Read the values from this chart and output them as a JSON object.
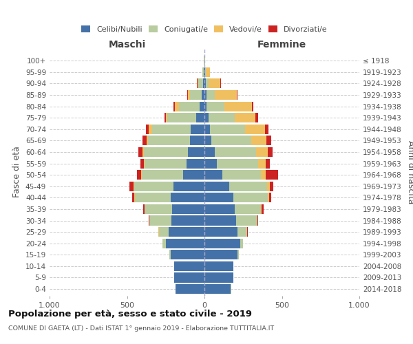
{
  "age_groups": [
    "0-4",
    "5-9",
    "10-14",
    "15-19",
    "20-24",
    "25-29",
    "30-34",
    "35-39",
    "40-44",
    "45-49",
    "50-54",
    "55-59",
    "60-64",
    "65-69",
    "70-74",
    "75-79",
    "80-84",
    "85-89",
    "90-94",
    "95-99",
    "100+"
  ],
  "birth_years": [
    "2014-2018",
    "2009-2013",
    "2004-2008",
    "1999-2003",
    "1994-1998",
    "1989-1993",
    "1984-1988",
    "1979-1983",
    "1974-1978",
    "1969-1973",
    "1964-1968",
    "1959-1963",
    "1954-1958",
    "1949-1953",
    "1944-1948",
    "1939-1943",
    "1934-1938",
    "1929-1933",
    "1924-1928",
    "1919-1923",
    "≤ 1918"
  ],
  "maschi": {
    "celibi": [
      185,
      195,
      195,
      220,
      250,
      230,
      215,
      210,
      220,
      200,
      140,
      115,
      105,
      95,
      90,
      55,
      30,
      20,
      10,
      5,
      2
    ],
    "coniugati": [
      2,
      2,
      2,
      5,
      20,
      65,
      140,
      175,
      230,
      255,
      265,
      270,
      285,
      270,
      250,
      185,
      135,
      75,
      30,
      8,
      2
    ],
    "vedovi": [
      0,
      0,
      0,
      0,
      2,
      2,
      2,
      2,
      2,
      3,
      5,
      8,
      10,
      10,
      20,
      10,
      25,
      12,
      5,
      2,
      0
    ],
    "divorziati": [
      0,
      0,
      0,
      0,
      0,
      2,
      5,
      10,
      15,
      25,
      25,
      20,
      25,
      25,
      20,
      10,
      8,
      2,
      2,
      0,
      0
    ]
  },
  "femmine": {
    "nubili": [
      170,
      185,
      185,
      215,
      230,
      215,
      205,
      195,
      185,
      160,
      115,
      80,
      65,
      45,
      35,
      25,
      15,
      12,
      8,
      5,
      2
    ],
    "coniugate": [
      2,
      2,
      2,
      5,
      18,
      60,
      135,
      170,
      225,
      245,
      250,
      265,
      270,
      255,
      225,
      170,
      115,
      55,
      20,
      5,
      2
    ],
    "vedove": [
      0,
      0,
      0,
      0,
      2,
      2,
      3,
      5,
      8,
      15,
      30,
      50,
      75,
      100,
      130,
      135,
      175,
      140,
      75,
      25,
      2
    ],
    "divorziate": [
      0,
      0,
      0,
      0,
      0,
      2,
      5,
      10,
      15,
      25,
      80,
      25,
      30,
      30,
      25,
      15,
      10,
      5,
      2,
      0,
      0
    ]
  },
  "color_celibi": "#4472a8",
  "color_coniugati": "#b8cca0",
  "color_vedovi": "#f0c060",
  "color_divorziati": "#cc2222",
  "xlim": 1000,
  "title_main": "Popolazione per età, sesso e stato civile - 2019",
  "title_sub": "COMUNE DI GAETA (LT) - Dati ISTAT 1° gennaio 2019 - Elaborazione TUTTITALIA.IT",
  "ylabel_left": "Fasce di età",
  "ylabel_right": "Anni di nascita",
  "xlabel_left": "Maschi",
  "xlabel_right": "Femmine"
}
